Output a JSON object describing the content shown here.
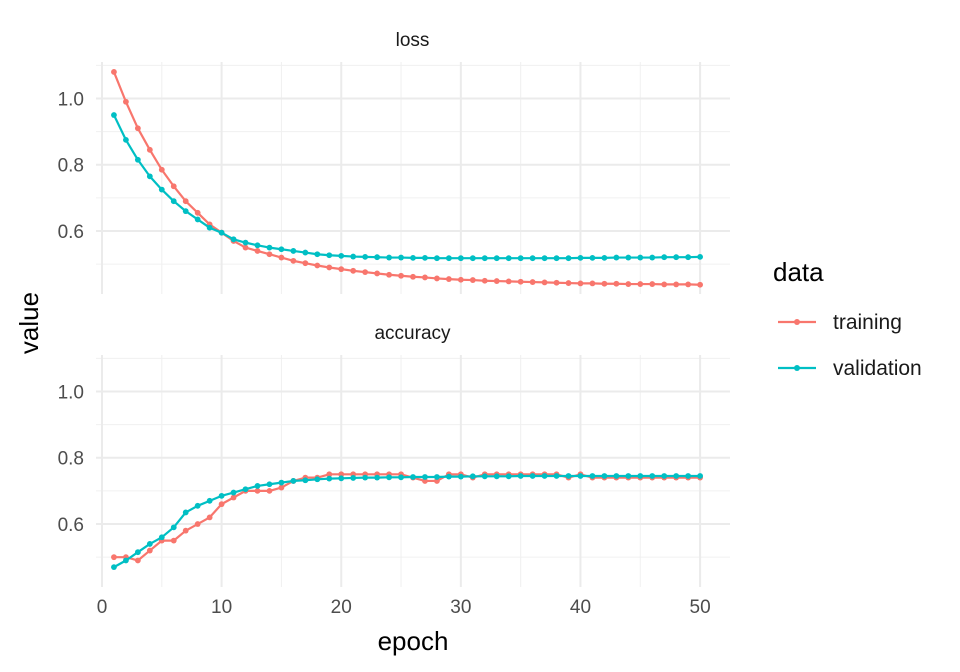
{
  "chart_data": {
    "type": "line",
    "facets": [
      "loss",
      "accuracy"
    ],
    "xlabel": "epoch",
    "ylabel": "value",
    "xlim": [
      -0.5,
      52.5
    ],
    "ylim": [
      0.41,
      1.11
    ],
    "x_ticks": [
      0,
      10,
      20,
      30,
      40,
      50
    ],
    "y_ticks": [
      0.6,
      0.8,
      1.0
    ],
    "grid": true,
    "legend": {
      "title": "data",
      "position": "right",
      "entries": [
        {
          "name": "training",
          "color": "#F8766D"
        },
        {
          "name": "validation",
          "color": "#00BFC4"
        }
      ]
    },
    "x": [
      1,
      2,
      3,
      4,
      5,
      6,
      7,
      8,
      9,
      10,
      11,
      12,
      13,
      14,
      15,
      16,
      17,
      18,
      19,
      20,
      21,
      22,
      23,
      24,
      25,
      26,
      27,
      28,
      29,
      30,
      31,
      32,
      33,
      34,
      35,
      36,
      37,
      38,
      39,
      40,
      41,
      42,
      43,
      44,
      45,
      46,
      47,
      48,
      49,
      50
    ],
    "panels": [
      {
        "facet": "loss",
        "series": [
          {
            "name": "training",
            "values": [
              1.08,
              0.99,
              0.91,
              0.845,
              0.785,
              0.735,
              0.69,
              0.655,
              0.62,
              0.595,
              0.57,
              0.55,
              0.54,
              0.53,
              0.52,
              0.51,
              0.503,
              0.496,
              0.49,
              0.485,
              0.48,
              0.476,
              0.472,
              0.468,
              0.465,
              0.462,
              0.46,
              0.457,
              0.455,
              0.453,
              0.452,
              0.45,
              0.449,
              0.448,
              0.447,
              0.446,
              0.445,
              0.444,
              0.443,
              0.442,
              0.442,
              0.441,
              0.441,
              0.44,
              0.44,
              0.44,
              0.439,
              0.439,
              0.439,
              0.438
            ]
          },
          {
            "name": "validation",
            "values": [
              0.95,
              0.875,
              0.815,
              0.765,
              0.725,
              0.69,
              0.66,
              0.635,
              0.61,
              0.595,
              0.575,
              0.565,
              0.557,
              0.55,
              0.545,
              0.54,
              0.535,
              0.53,
              0.527,
              0.525,
              0.523,
              0.522,
              0.521,
              0.52,
              0.52,
              0.519,
              0.519,
              0.518,
              0.518,
              0.518,
              0.518,
              0.518,
              0.518,
              0.518,
              0.518,
              0.518,
              0.518,
              0.518,
              0.518,
              0.519,
              0.519,
              0.519,
              0.52,
              0.52,
              0.52,
              0.52,
              0.521,
              0.521,
              0.521,
              0.522
            ]
          }
        ]
      },
      {
        "facet": "accuracy",
        "series": [
          {
            "name": "training",
            "values": [
              0.5,
              0.5,
              0.49,
              0.52,
              0.55,
              0.55,
              0.58,
              0.6,
              0.62,
              0.66,
              0.68,
              0.7,
              0.7,
              0.7,
              0.71,
              0.73,
              0.74,
              0.74,
              0.75,
              0.75,
              0.75,
              0.75,
              0.75,
              0.75,
              0.75,
              0.74,
              0.73,
              0.73,
              0.75,
              0.75,
              0.74,
              0.75,
              0.75,
              0.75,
              0.75,
              0.75,
              0.75,
              0.75,
              0.74,
              0.75,
              0.74,
              0.74,
              0.74,
              0.74,
              0.74,
              0.74,
              0.74,
              0.74,
              0.74,
              0.74
            ]
          },
          {
            "name": "validation",
            "values": [
              0.47,
              0.49,
              0.515,
              0.54,
              0.56,
              0.59,
              0.635,
              0.655,
              0.67,
              0.685,
              0.695,
              0.705,
              0.715,
              0.72,
              0.725,
              0.73,
              0.732,
              0.735,
              0.737,
              0.738,
              0.739,
              0.74,
              0.74,
              0.741,
              0.741,
              0.742,
              0.742,
              0.742,
              0.743,
              0.743,
              0.744,
              0.744,
              0.744,
              0.744,
              0.745,
              0.745,
              0.745,
              0.745,
              0.745,
              0.745,
              0.745,
              0.745,
              0.745,
              0.745,
              0.745,
              0.745,
              0.745,
              0.745,
              0.745,
              0.745
            ]
          }
        ]
      }
    ]
  }
}
